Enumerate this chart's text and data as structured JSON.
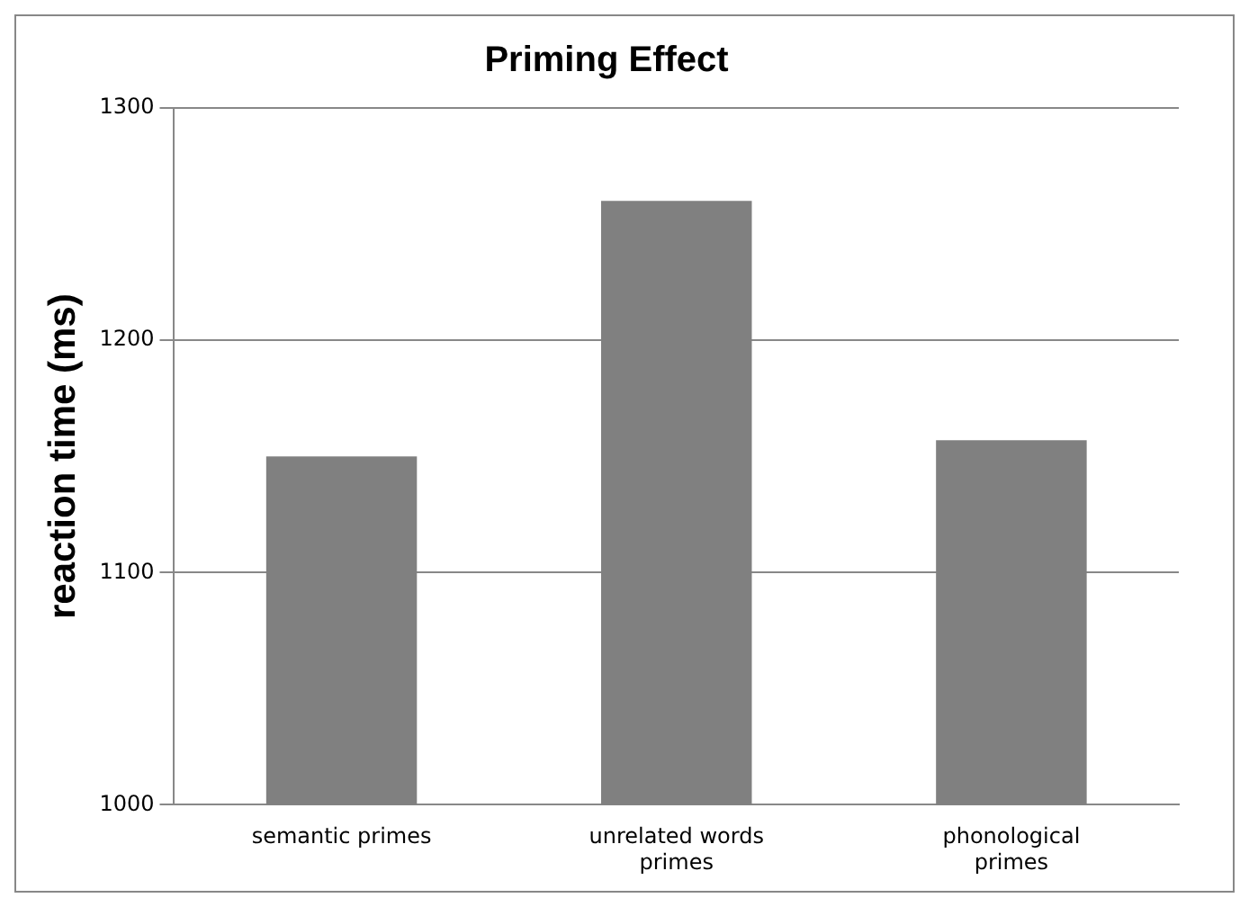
{
  "chart_data": {
    "type": "bar",
    "title": "Priming Effect",
    "ylabel": "reaction time (ms)",
    "categories": [
      "semantic primes",
      "unrelated words primes",
      "phonological primes"
    ],
    "values": [
      1150,
      1260,
      1157
    ],
    "color": "#808080",
    "ylim": [
      1000,
      1300
    ],
    "yticks": [
      1000,
      1100,
      1200,
      1300
    ],
    "grid": "y",
    "legend": false
  }
}
